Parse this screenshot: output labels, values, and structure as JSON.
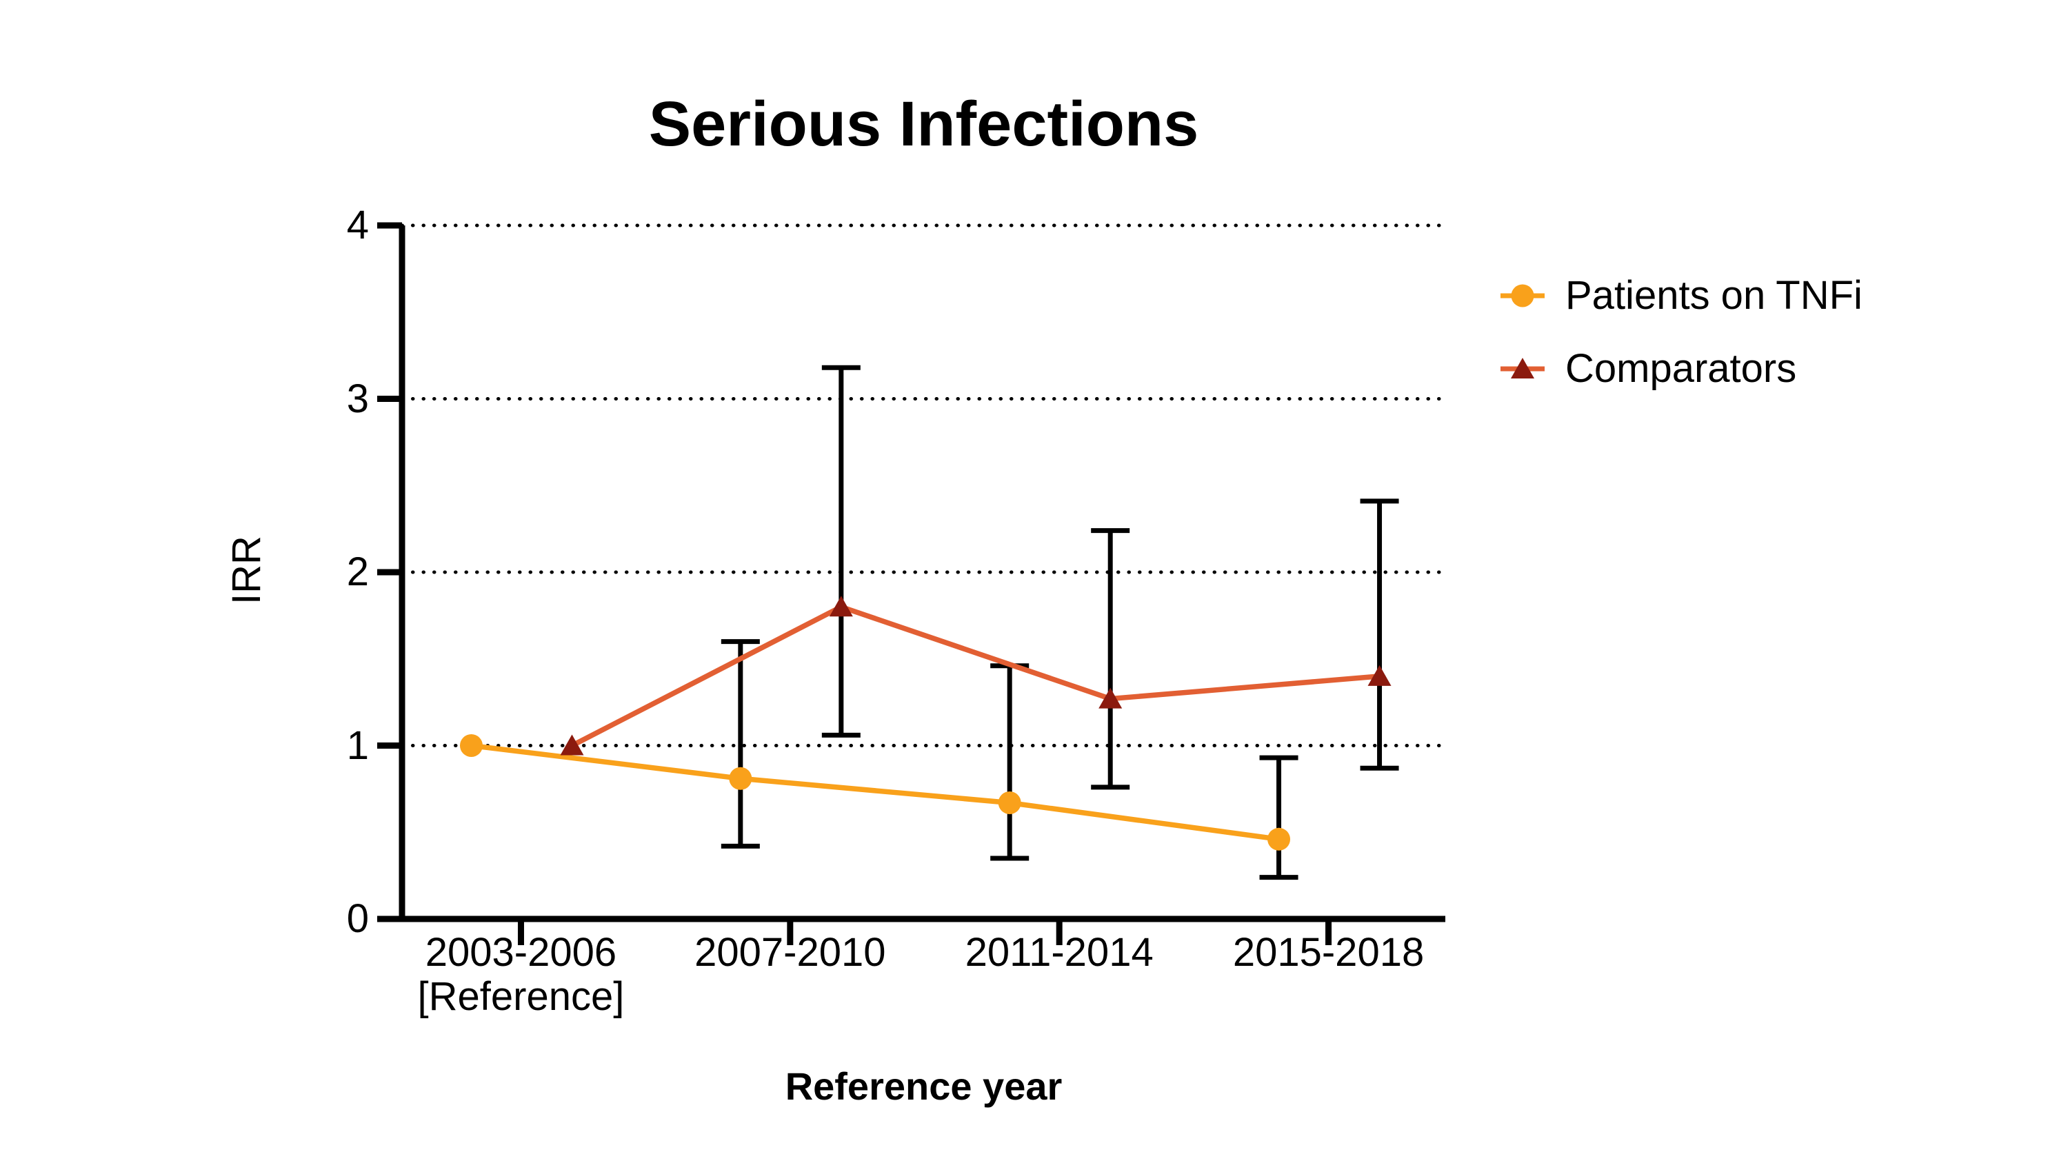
{
  "chart_data": {
    "type": "line",
    "title": "Serious Infections",
    "xlabel": "Reference year",
    "ylabel": "IRR",
    "categories": [
      "2003-2006",
      "2007-2010",
      "2011-2014",
      "2015-2018"
    ],
    "category_sublabels": [
      "[Reference]",
      "",
      "",
      ""
    ],
    "ylim": [
      0,
      4
    ],
    "yticks": [
      0,
      1,
      2,
      3,
      4
    ],
    "gridlines": {
      "style": "dotted",
      "at": [
        1,
        2,
        3,
        4
      ],
      "color": "#000000"
    },
    "legend_position": "right",
    "error_bar_color": "#000000",
    "series": [
      {
        "name": "Patients on TNFi",
        "marker": "circle",
        "marker_color": "#F9A11B",
        "line_color": "#F9A11B",
        "values": [
          1.0,
          0.81,
          0.67,
          0.46
        ],
        "ci_low": [
          null,
          0.42,
          0.35,
          0.24
        ],
        "ci_high": [
          null,
          1.6,
          1.46,
          0.93
        ]
      },
      {
        "name": "Comparators",
        "marker": "triangle",
        "marker_color": "#8B1A0E",
        "line_color": "#E25F33",
        "values": [
          1.0,
          1.8,
          1.27,
          1.4
        ],
        "ci_low": [
          null,
          1.06,
          0.76,
          0.87
        ],
        "ci_high": [
          null,
          3.18,
          2.24,
          2.41
        ]
      }
    ]
  }
}
